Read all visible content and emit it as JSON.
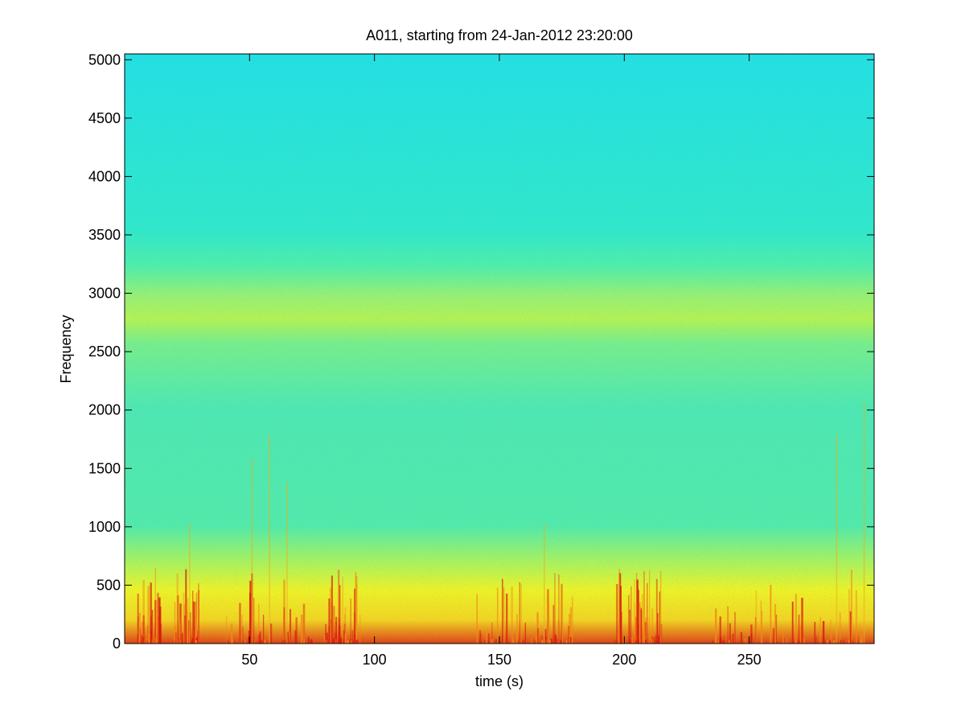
{
  "chart_data": {
    "type": "spectrogram",
    "title": "A011, starting from 24-Jan-2012 23:20:00",
    "x_label": "time (s)",
    "y_label": "Frequency",
    "xlim": [
      0,
      300
    ],
    "ylim": [
      0,
      5050
    ],
    "xticks": [
      50,
      100,
      150,
      200,
      250
    ],
    "yticks": [
      0,
      500,
      1000,
      1500,
      2000,
      2500,
      3000,
      3500,
      4000,
      4500,
      5000
    ]
  }
}
